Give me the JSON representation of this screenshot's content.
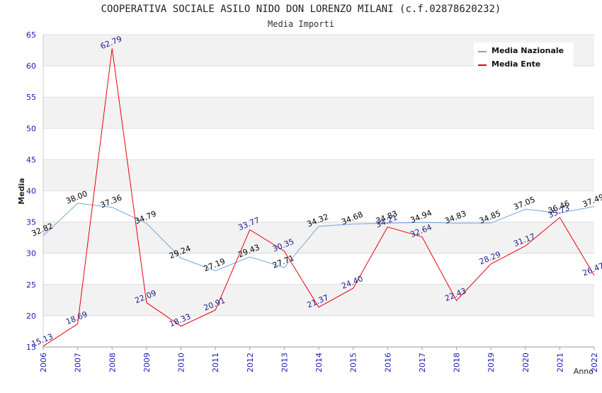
{
  "chart_data": {
    "type": "line",
    "title": "COOPERATIVA SOCIALE ASILO NIDO DON LORENZO MILANI (c.f.02878620232)",
    "subtitle": "Media Importi",
    "xlabel": "Anno",
    "ylabel": "Media",
    "categories": [
      "2006",
      "2007",
      "2008",
      "2009",
      "2010",
      "2011",
      "2012",
      "2013",
      "2014",
      "2015",
      "2016",
      "2017",
      "2018",
      "2019",
      "2020",
      "2021",
      "2022"
    ],
    "ylim": [
      15,
      65
    ],
    "yticks": [
      15,
      20,
      25,
      30,
      35,
      40,
      45,
      50,
      55,
      60,
      65
    ],
    "grid": true,
    "legend_position": "top-right",
    "series": [
      {
        "name": "Media Nazionale",
        "color": "#6fa8dc",
        "label_color": "#000000",
        "values": [
          32.82,
          38.0,
          37.36,
          34.79,
          29.24,
          27.19,
          29.43,
          27.71,
          34.32,
          34.68,
          34.83,
          34.94,
          34.83,
          34.85,
          37.05,
          36.46,
          37.49
        ],
        "labels": [
          "32.82",
          "38.00",
          "37.36",
          "34.79",
          "29.24",
          "27.19",
          "29.43",
          "27.71",
          "34.32",
          "34.68",
          "34.83",
          "34.94",
          "34.83",
          "34.85",
          "37.05",
          "36.46",
          "37.49"
        ]
      },
      {
        "name": "Media Ente",
        "color": "#e8000b",
        "label_color": "#1a1a8c",
        "values": [
          15.13,
          18.69,
          62.79,
          22.09,
          18.33,
          20.91,
          33.77,
          30.35,
          21.37,
          24.4,
          34.21,
          32.64,
          22.43,
          28.29,
          31.17,
          35.73,
          26.47
        ],
        "labels": [
          "15.13",
          "18.69",
          "62.79",
          "22.09",
          "18.33",
          "20.91",
          "33.77",
          "30.35",
          "21.37",
          "24.40",
          "34.21",
          "32.64",
          "22.43",
          "28.29",
          "31.17",
          "35.73",
          "26.47"
        ]
      }
    ]
  }
}
